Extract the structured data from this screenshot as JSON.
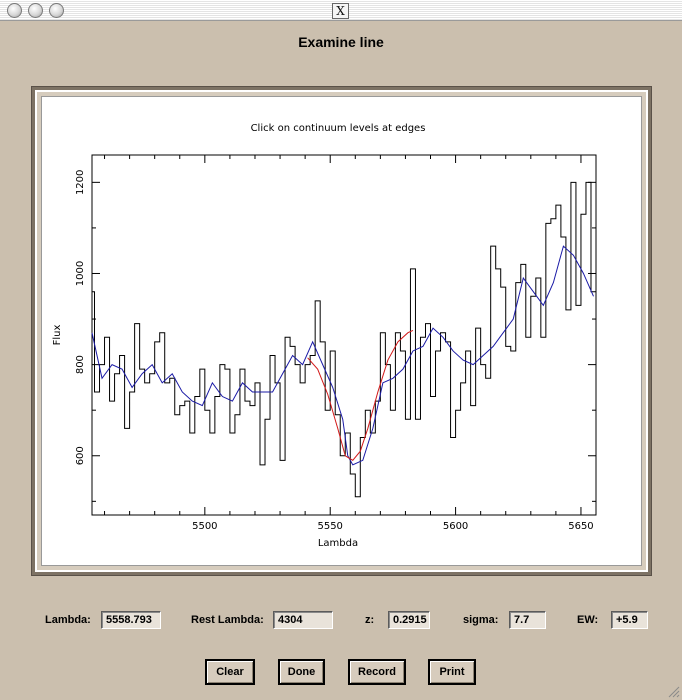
{
  "window": {
    "title": "Examine line",
    "close_glyph": "X"
  },
  "plot": {
    "title": "Click on continuum levels at edges",
    "xlabel": "Lambda",
    "ylabel": "Flux"
  },
  "chart_data": {
    "type": "line",
    "title": "Click on continuum levels at edges",
    "xlabel": "Lambda",
    "ylabel": "Flux",
    "xlim": [
      5455,
      5656
    ],
    "ylim": [
      470,
      1260
    ],
    "xticks": [
      5500,
      5550,
      5600,
      5650
    ],
    "yticks": [
      600,
      800,
      1000,
      1200
    ],
    "grid": false,
    "series": [
      {
        "style": "step",
        "color": "#000000",
        "x": [
          5455,
          5457,
          5459,
          5461,
          5463,
          5465,
          5467,
          5469,
          5471,
          5473,
          5475,
          5477,
          5479,
          5481,
          5483,
          5485,
          5487,
          5489,
          5491,
          5493,
          5495,
          5497,
          5499,
          5501,
          5503,
          5505,
          5507,
          5509,
          5511,
          5513,
          5515,
          5517,
          5519,
          5521,
          5523,
          5525,
          5527,
          5529,
          5531,
          5533,
          5535,
          5537,
          5539,
          5541,
          5543,
          5545,
          5547,
          5549,
          5551,
          5553,
          5555,
          5557,
          5559,
          5561,
          5563,
          5565,
          5567,
          5569,
          5571,
          5573,
          5575,
          5577,
          5579,
          5581,
          5583,
          5585,
          5587,
          5589,
          5591,
          5593,
          5595,
          5597,
          5599,
          5601,
          5603,
          5605,
          5607,
          5609,
          5611,
          5613,
          5615,
          5617,
          5619,
          5621,
          5623,
          5625,
          5627,
          5629,
          5631,
          5633,
          5635,
          5637,
          5639,
          5641,
          5643,
          5645,
          5647,
          5649,
          5651,
          5653,
          5655
        ],
        "values": [
          960,
          740,
          800,
          860,
          720,
          780,
          820,
          660,
          740,
          890,
          790,
          760,
          780,
          850,
          870,
          760,
          770,
          690,
          710,
          720,
          650,
          730,
          790,
          700,
          650,
          730,
          800,
          790,
          650,
          690,
          790,
          720,
          710,
          760,
          580,
          680,
          820,
          760,
          590,
          860,
          840,
          800,
          760,
          800,
          820,
          940,
          850,
          700,
          830,
          690,
          600,
          650,
          560,
          510,
          640,
          700,
          650,
          720,
          870,
          800,
          700,
          870,
          830,
          680,
          1010,
          680,
          860,
          890,
          730,
          830,
          870,
          850,
          640,
          700,
          760,
          830,
          710,
          880,
          800,
          770,
          1060,
          1010,
          970,
          840,
          830,
          980,
          1020,
          860,
          950,
          990,
          860,
          1110,
          1120,
          1150,
          1080,
          920,
          1200,
          930,
          1130,
          1200,
          960
        ]
      },
      {
        "style": "line",
        "color": "#1a1aa6",
        "x": [
          5455,
          5459,
          5463,
          5467,
          5471,
          5475,
          5479,
          5483,
          5487,
          5491,
          5495,
          5499,
          5503,
          5507,
          5511,
          5515,
          5519,
          5523,
          5527,
          5531,
          5535,
          5539,
          5543,
          5547,
          5551,
          5555,
          5557,
          5559,
          5563,
          5567,
          5571,
          5575,
          5579,
          5583,
          5587,
          5591,
          5595,
          5599,
          5603,
          5607,
          5611,
          5615,
          5619,
          5623,
          5627,
          5631,
          5635,
          5639,
          5643,
          5647,
          5651,
          5655
        ],
        "values": [
          870,
          770,
          800,
          790,
          750,
          780,
          800,
          760,
          780,
          740,
          720,
          710,
          760,
          730,
          720,
          760,
          740,
          740,
          740,
          780,
          820,
          800,
          850,
          800,
          750,
          680,
          600,
          580,
          590,
          660,
          760,
          770,
          790,
          830,
          840,
          880,
          860,
          830,
          810,
          800,
          820,
          840,
          870,
          900,
          990,
          960,
          930,
          980,
          1060,
          1040,
          1000,
          950
        ]
      },
      {
        "style": "line",
        "color": "#d21919",
        "x": [
          5541,
          5545,
          5549,
          5553,
          5556,
          5559,
          5562,
          5565,
          5569,
          5573,
          5577,
          5581,
          5583
        ],
        "values": [
          815,
          790,
          735,
          660,
          600,
          590,
          610,
          660,
          740,
          810,
          850,
          870,
          875
        ]
      }
    ]
  },
  "fields": [
    {
      "label": "Lambda:",
      "value": "5558.793"
    },
    {
      "label": "Rest Lambda:",
      "value": "4304"
    },
    {
      "label": "z:",
      "value": "0.2915"
    },
    {
      "label": "sigma:",
      "value": "7.7"
    },
    {
      "label": "EW:",
      "value": "+5.9"
    }
  ],
  "buttons": [
    {
      "label": "Clear"
    },
    {
      "label": "Done"
    },
    {
      "label": "Record"
    },
    {
      "label": "Print"
    }
  ],
  "icons": [
    "window-close-icon",
    "window-minimize-icon",
    "window-zoom-icon",
    "resize-grip-icon"
  ]
}
